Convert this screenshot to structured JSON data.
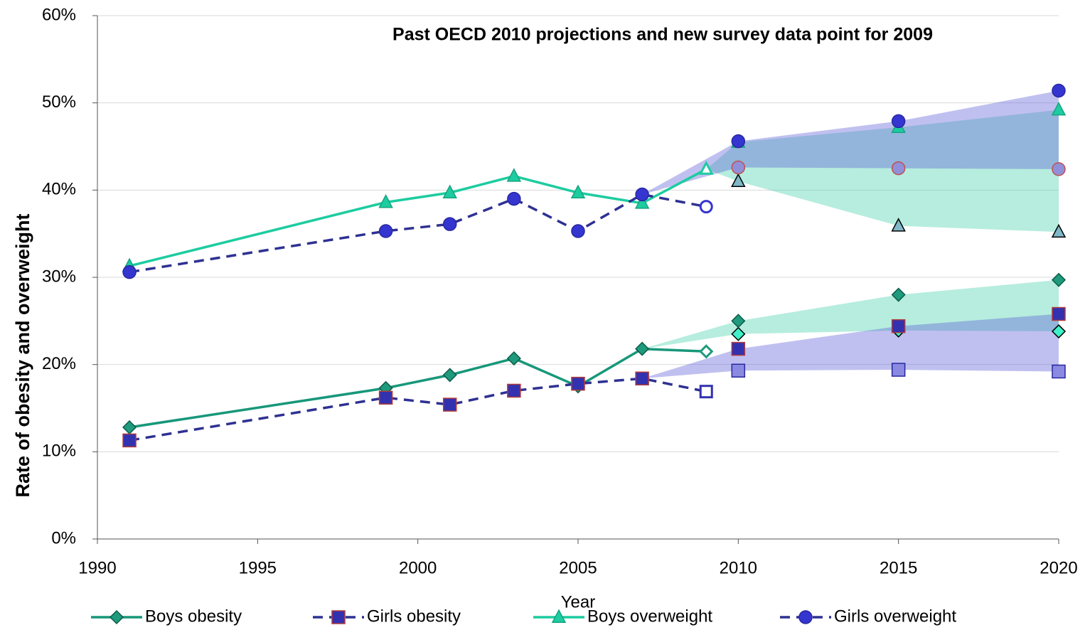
{
  "chart_data": {
    "type": "line",
    "title": "Past OECD 2010 projections and new survey data point for 2009",
    "x_label": "Year",
    "y_label": "Rate of obesity and overweight",
    "x": [
      1991,
      1999,
      2001,
      2003,
      2005,
      2007,
      2009
    ],
    "hollow_last": true,
    "series": [
      {
        "name": "Boys obesity",
        "color": "#17977a",
        "marker": "diamond",
        "marker_fill": "#1f9a7c",
        "marker_stroke": "#0d5c4a",
        "dash": false,
        "values": [
          12.8,
          17.3,
          18.8,
          20.7,
          17.5,
          21.8,
          21.5
        ]
      },
      {
        "name": "Girls obesity",
        "color": "#2e3192",
        "marker": "square",
        "marker_fill": "#3232b0",
        "marker_stroke": "#b03a3a",
        "dash": true,
        "values": [
          11.3,
          16.2,
          15.4,
          17.0,
          17.8,
          18.4,
          16.9
        ]
      },
      {
        "name": "Boys overweight",
        "color": "#1dcca0",
        "marker": "triangle",
        "marker_fill": "#1dcca0",
        "marker_stroke": "#16a380",
        "dash": false,
        "values": [
          31.3,
          38.6,
          39.7,
          41.6,
          39.7,
          38.5,
          42.4
        ]
      },
      {
        "name": "Girls overweight",
        "color": "#2e3192",
        "marker": "circle",
        "marker_fill": "#3535d0",
        "marker_stroke": "#2828a0",
        "dash": true,
        "values": [
          30.6,
          35.3,
          36.1,
          39.0,
          35.3,
          39.5,
          38.1
        ]
      }
    ],
    "projections": [
      {
        "x": [
          2007,
          2010,
          2015,
          2020
        ],
        "band_color": "#40d0a8",
        "marker": "diamond",
        "high": [
          21.8,
          25.0,
          28.0,
          29.7
        ],
        "high_fill": "#1f9a7c",
        "high_stroke": "#0d5c4a",
        "low": [
          21.8,
          23.5,
          23.9,
          23.8
        ],
        "low_fill": "#40f0c8",
        "low_stroke": "#000000"
      },
      {
        "x": [
          2007,
          2010,
          2015,
          2020
        ],
        "band_color": "#5a5ad8",
        "marker": "square",
        "high": [
          18.4,
          21.8,
          24.4,
          25.8
        ],
        "high_fill": "#3232b0",
        "high_stroke": "#b03a3a",
        "low": [
          18.4,
          19.3,
          19.4,
          19.2
        ],
        "low_fill": "#8a8ae0",
        "low_stroke": "#2828a0"
      },
      {
        "x": [
          2009,
          2010,
          2015,
          2020
        ],
        "band_color": "#40d0a8",
        "marker": "triangle",
        "high": [
          42.4,
          45.5,
          47.2,
          49.2
        ],
        "high_fill": "#1dcca0",
        "high_stroke": "#16a380",
        "low": [
          42.4,
          41.0,
          35.9,
          35.2
        ],
        "low_fill": "#80b8c8",
        "low_stroke": "#000000"
      },
      {
        "x": [
          2007,
          2010,
          2015,
          2020
        ],
        "band_color": "#5a5ad8",
        "marker": "circle",
        "high": [
          39.5,
          45.6,
          47.9,
          51.4
        ],
        "high_fill": "#3535d0",
        "high_stroke": "#2828a0",
        "low": [
          39.5,
          42.6,
          42.5,
          42.4
        ],
        "low_fill": "#9090d8",
        "low_stroke": "#c05050"
      }
    ],
    "xlim": [
      1990,
      2020
    ],
    "ylim": [
      0,
      60
    ],
    "xticks": [
      1990,
      1995,
      2000,
      2005,
      2010,
      2015,
      2020
    ],
    "yticks": [
      {
        "value": 0,
        "label": "0%"
      },
      {
        "value": 10,
        "label": "10%"
      },
      {
        "value": 20,
        "label": "20%"
      },
      {
        "value": 30,
        "label": "30%"
      },
      {
        "value": 40,
        "label": "40%"
      },
      {
        "value": 50,
        "label": "50%"
      },
      {
        "value": 60,
        "label": "60%"
      }
    ],
    "grid": true,
    "legend": "bottom"
  }
}
